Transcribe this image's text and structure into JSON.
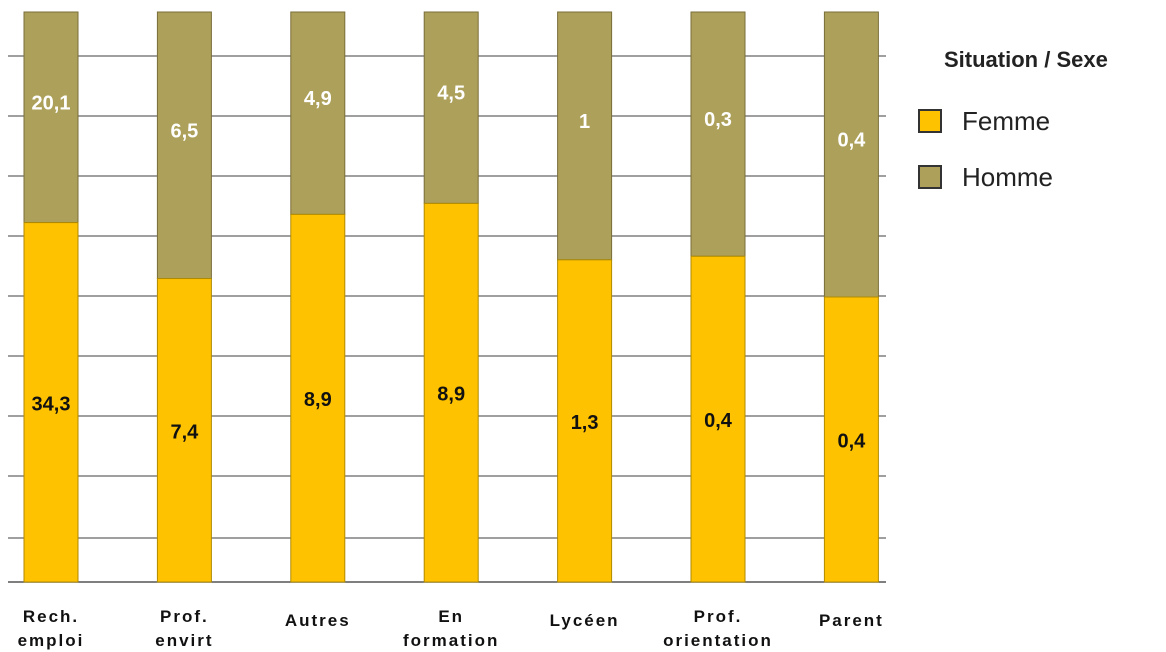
{
  "chart_data": {
    "type": "bar",
    "stacked": "percent",
    "categories": [
      [
        "Rech.",
        "emploi"
      ],
      [
        "Prof.",
        "envirt"
      ],
      [
        "Autres"
      ],
      [
        "En",
        "formation"
      ],
      [
        "Lycéen"
      ],
      [
        "Prof.",
        "orientation"
      ],
      [
        "Parent"
      ]
    ],
    "series": [
      {
        "name": "Femme",
        "color": "#FFC200",
        "label_color": "#111111",
        "values": [
          34.3,
          7.4,
          8.9,
          8.9,
          1.3,
          0.4,
          0.4
        ],
        "labels": [
          "34,3",
          "7,4",
          "8,9",
          "8,9",
          "1,3",
          "0,4",
          "0,4"
        ]
      },
      {
        "name": "Homme",
        "color": "#ADA05A",
        "label_color": "#ffffff",
        "values": [
          20.1,
          6.5,
          4.9,
          4.5,
          1,
          0.3,
          0.4
        ],
        "labels": [
          "20,1",
          "6,5",
          "4,9",
          "4,5",
          "1",
          "0,3",
          "0,4"
        ]
      }
    ],
    "legend": {
      "title": "Situation / Sexe",
      "position": "right"
    },
    "grid": true
  }
}
